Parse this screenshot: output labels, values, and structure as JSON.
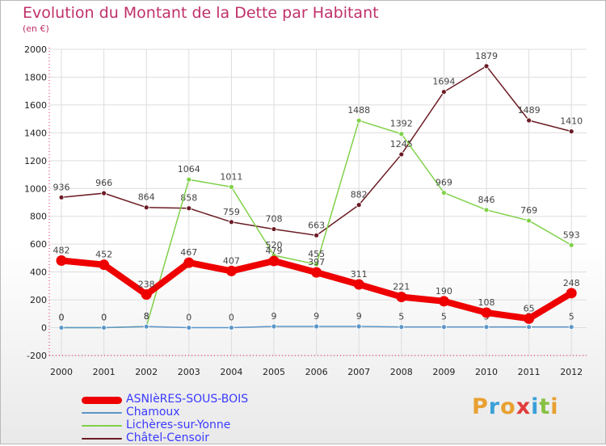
{
  "title": "Evolution du Montant de la Dette par Habitant",
  "unit": "(en €)",
  "logo": [
    "P",
    "r",
    "o",
    "x",
    "i",
    "t",
    "i"
  ],
  "colors": {
    "title": "#c0306a",
    "axis": "#e0195a",
    "grid": "#dddddd",
    "label": "#444444",
    "logo": [
      "#e8a030",
      "#3aa0d8",
      "#e8a030",
      "#e23c3c",
      "#3aa0d8",
      "#86c040",
      "#e8a030"
    ]
  },
  "chart_data": {
    "type": "line",
    "x": [
      "2000",
      "2001",
      "2002",
      "2003",
      "2004",
      "2005",
      "2006",
      "2007",
      "2008",
      "2009",
      "2010",
      "2011",
      "2012"
    ],
    "ylim": [
      -200,
      2000
    ],
    "yticks": [
      -200,
      0,
      200,
      400,
      600,
      800,
      1000,
      1200,
      1400,
      1600,
      1800,
      2000
    ],
    "grid": true,
    "legend_position": "bottom-left",
    "series": [
      {
        "name": "Châtel-Censoir",
        "color": "#6b1c24",
        "values": [
          936,
          966,
          864,
          858,
          759,
          708,
          663,
          882,
          1245,
          1694,
          1879,
          1489,
          1410
        ]
      },
      {
        "name": "Lichères-sur-Yonne",
        "color": "#80d14a",
        "values": [
          0,
          0,
          8,
          1064,
          1011,
          520,
          455,
          1488,
          1392,
          969,
          846,
          769,
          593
        ]
      },
      {
        "name": "Chamoux",
        "color": "#5d96c8",
        "values": [
          0,
          0,
          8,
          0,
          0,
          9,
          9,
          9,
          5,
          5,
          5,
          5,
          5
        ]
      },
      {
        "name": "ASNIèRES-SOUS-BOIS",
        "color": "#ee0000",
        "values": [
          482,
          452,
          238,
          467,
          407,
          479,
          397,
          311,
          221,
          190,
          108,
          65,
          248
        ]
      }
    ],
    "legend": [
      {
        "name": "ASNIèRES-SOUS-BOIS",
        "color": "#ee0000",
        "text_color": "#3a3aff",
        "thickness": 9
      },
      {
        "name": "Chamoux",
        "color": "#5d96c8",
        "text_color": "#3a3aff",
        "thickness": 2
      },
      {
        "name": "Lichères-sur-Yonne",
        "color": "#80d14a",
        "text_color": "#3a3aff",
        "thickness": 2
      },
      {
        "name": "Châtel-Censoir",
        "color": "#6b1c24",
        "text_color": "#3a3aff",
        "thickness": 2
      }
    ]
  }
}
